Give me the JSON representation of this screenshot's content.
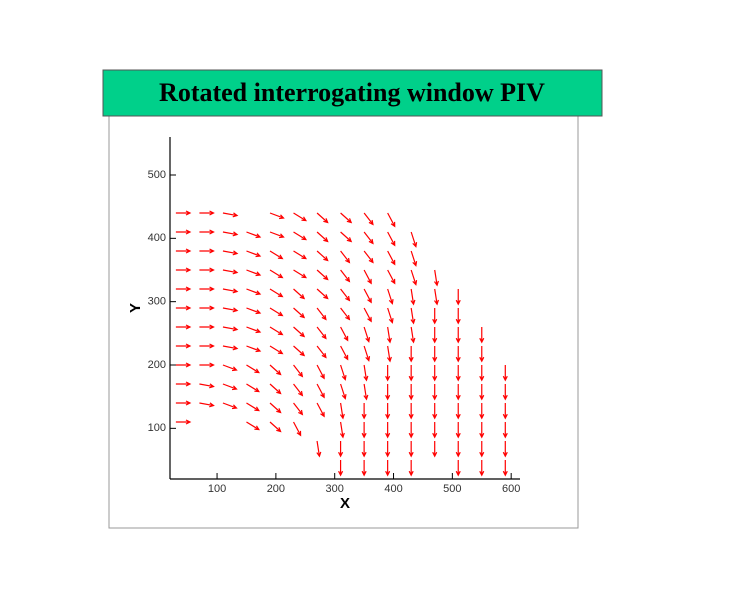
{
  "chart_data": {
    "type": "quiver",
    "title": "Rotated interrogating window PIV",
    "xlabel": "X",
    "ylabel": "Y",
    "color": "#ff0000",
    "title_background": "#00d08a",
    "xlim": [
      20,
      615
    ],
    "ylim": [
      20,
      560
    ],
    "xticks": [
      100,
      200,
      300,
      400,
      500,
      600
    ],
    "yticks": [
      100,
      200,
      300,
      400,
      500
    ],
    "rows": [
      {
        "y": 440,
        "x": [
          30,
          70,
          110,
          190,
          230,
          270,
          310,
          350,
          390
        ],
        "u": [
          24,
          24,
          24,
          23,
          21,
          18,
          18,
          15,
          12
        ],
        "v": [
          0,
          0,
          -4,
          -8,
          -12,
          -15,
          -15,
          -18,
          -21
        ]
      },
      {
        "y": 410,
        "x": [
          30,
          70,
          110,
          150,
          190,
          230,
          270,
          310,
          350,
          390,
          430
        ],
        "u": [
          24,
          24,
          24,
          23,
          23,
          21,
          18,
          18,
          15,
          12,
          8
        ],
        "v": [
          0,
          0,
          -4,
          -8,
          -8,
          -12,
          -15,
          -15,
          -18,
          -21,
          -23
        ]
      },
      {
        "y": 380,
        "x": [
          30,
          70,
          110,
          150,
          190,
          230,
          270,
          310,
          350,
          390,
          430
        ],
        "u": [
          24,
          24,
          24,
          23,
          21,
          21,
          18,
          15,
          15,
          12,
          8
        ],
        "v": [
          0,
          0,
          -4,
          -8,
          -12,
          -12,
          -15,
          -18,
          -18,
          -21,
          -23
        ]
      },
      {
        "y": 350,
        "x": [
          30,
          70,
          110,
          150,
          190,
          230,
          270,
          310,
          350,
          390,
          430,
          470
        ],
        "u": [
          24,
          24,
          24,
          23,
          21,
          21,
          18,
          15,
          12,
          12,
          8,
          4
        ],
        "v": [
          0,
          0,
          -4,
          -8,
          -12,
          -12,
          -15,
          -18,
          -21,
          -21,
          -23,
          -24
        ]
      },
      {
        "y": 320,
        "x": [
          30,
          70,
          110,
          150,
          190,
          230,
          270,
          310,
          350,
          390,
          430,
          470,
          510
        ],
        "u": [
          24,
          24,
          24,
          23,
          21,
          18,
          18,
          15,
          12,
          8,
          4,
          4,
          0
        ],
        "v": [
          0,
          0,
          -4,
          -8,
          -12,
          -15,
          -15,
          -18,
          -21,
          -23,
          -24,
          -24,
          -24
        ]
      },
      {
        "y": 290,
        "x": [
          30,
          70,
          110,
          150,
          190,
          230,
          270,
          310,
          350,
          390,
          430,
          470,
          510
        ],
        "u": [
          24,
          24,
          24,
          23,
          21,
          18,
          15,
          15,
          12,
          8,
          4,
          0,
          0
        ],
        "v": [
          0,
          0,
          -4,
          -8,
          -12,
          -15,
          -18,
          -18,
          -21,
          -23,
          -24,
          -24,
          -24
        ]
      },
      {
        "y": 260,
        "x": [
          30,
          70,
          110,
          150,
          190,
          230,
          270,
          310,
          350,
          390,
          430,
          470,
          510,
          550
        ],
        "u": [
          24,
          24,
          24,
          23,
          21,
          18,
          15,
          12,
          8,
          4,
          4,
          0,
          0,
          0
        ],
        "v": [
          0,
          0,
          -4,
          -8,
          -12,
          -15,
          -18,
          -21,
          -23,
          -24,
          -24,
          -24,
          -24,
          -24
        ]
      },
      {
        "y": 230,
        "x": [
          30,
          70,
          110,
          150,
          190,
          230,
          270,
          310,
          350,
          390,
          430,
          470,
          510,
          550
        ],
        "u": [
          24,
          24,
          24,
          23,
          21,
          18,
          15,
          12,
          8,
          4,
          0,
          0,
          0,
          0
        ],
        "v": [
          0,
          0,
          -4,
          -8,
          -12,
          -15,
          -18,
          -21,
          -23,
          -24,
          -24,
          -24,
          -24,
          -24
        ]
      },
      {
        "y": 200,
        "x": [
          30,
          70,
          110,
          150,
          190,
          230,
          270,
          310,
          350,
          390,
          430,
          470,
          510,
          550,
          590
        ],
        "u": [
          24,
          24,
          23,
          21,
          18,
          15,
          12,
          8,
          4,
          0,
          0,
          0,
          0,
          0,
          0
        ],
        "v": [
          0,
          0,
          -8,
          -12,
          -15,
          -18,
          -21,
          -23,
          -24,
          -24,
          -24,
          -24,
          -24,
          -24,
          -24
        ]
      },
      {
        "y": 170,
        "x": [
          30,
          70,
          110,
          150,
          190,
          230,
          270,
          310,
          350,
          390,
          430,
          470,
          510,
          550,
          590
        ],
        "u": [
          24,
          24,
          23,
          21,
          18,
          15,
          12,
          8,
          4,
          0,
          0,
          0,
          0,
          0,
          0
        ],
        "v": [
          0,
          -4,
          -8,
          -12,
          -15,
          -18,
          -21,
          -23,
          -24,
          -24,
          -24,
          -24,
          -24,
          -24,
          -24
        ]
      },
      {
        "y": 140,
        "x": [
          30,
          70,
          110,
          150,
          190,
          230,
          270,
          310,
          350,
          390,
          430,
          470,
          510,
          550,
          590
        ],
        "u": [
          24,
          24,
          23,
          21,
          18,
          15,
          12,
          4,
          0,
          0,
          0,
          0,
          0,
          0,
          0
        ],
        "v": [
          0,
          -4,
          -8,
          -12,
          -15,
          -18,
          -21,
          -24,
          -24,
          -24,
          -24,
          -24,
          -24,
          -24,
          -24
        ]
      },
      {
        "y": 110,
        "x": [
          30,
          150,
          190,
          230,
          310,
          350,
          390,
          430,
          470,
          510,
          550,
          590
        ],
        "u": [
          24,
          21,
          18,
          12,
          4,
          0,
          0,
          0,
          0,
          0,
          0,
          0
        ],
        "v": [
          0,
          -12,
          -15,
          -21,
          -24,
          -24,
          -24,
          -24,
          -24,
          -24,
          -24,
          -24
        ]
      },
      {
        "y": 80,
        "x": [
          270,
          310,
          350,
          390,
          430,
          470,
          510,
          550,
          590
        ],
        "u": [
          4,
          0,
          0,
          0,
          0,
          0,
          0,
          0,
          0
        ],
        "v": [
          -24,
          -24,
          -24,
          -24,
          -24,
          -24,
          -24,
          -24,
          -24
        ]
      },
      {
        "y": 50,
        "x": [
          310,
          350,
          390,
          430,
          510,
          550,
          590
        ],
        "u": [
          0,
          0,
          0,
          0,
          0,
          0,
          0
        ],
        "v": [
          -24,
          -24,
          -24,
          -24,
          -24,
          -24,
          -24
        ]
      }
    ]
  }
}
